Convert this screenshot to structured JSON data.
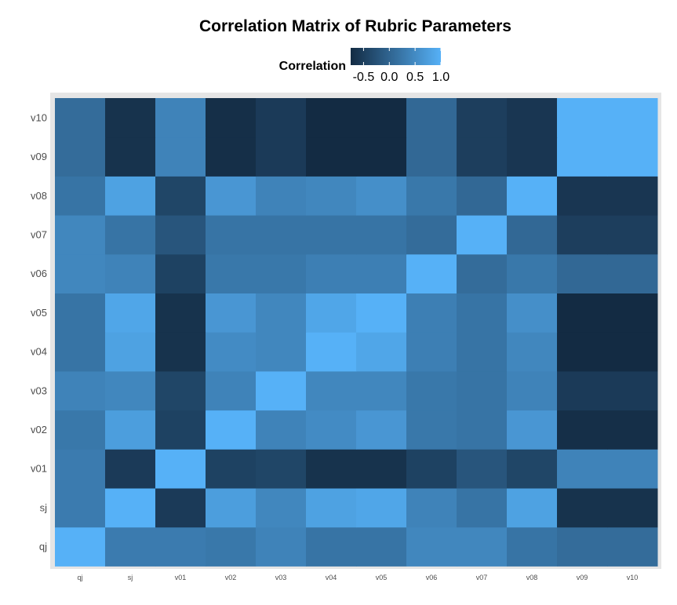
{
  "chart_data": {
    "type": "heatmap",
    "title": "Correlation Matrix of Rubric Parameters",
    "legend": {
      "title": "Correlation",
      "placement": "top",
      "ticks": [
        "-0.5",
        "0.0",
        "0.5",
        "1.0"
      ],
      "tick_values": [
        -0.5,
        0.0,
        0.5,
        1.0
      ],
      "range": [
        -0.75,
        1.0
      ]
    },
    "color_scale": {
      "low": "#132B43",
      "high": "#56B1F7"
    },
    "x_categories": [
      "qj",
      "sj",
      "v01",
      "v02",
      "v03",
      "v04",
      "v05",
      "v06",
      "v07",
      "v08",
      "v09",
      "v10"
    ],
    "y_categories": [
      "qj",
      "sj",
      "v01",
      "v02",
      "v03",
      "v04",
      "v05",
      "v06",
      "v07",
      "v08",
      "v09",
      "v10"
    ],
    "matrix": [
      [
        1.0,
        0.3,
        0.3,
        0.25,
        0.4,
        0.2,
        0.2,
        0.45,
        0.45,
        0.2,
        0.1,
        0.1
      ],
      [
        0.3,
        1.0,
        -0.55,
        0.75,
        0.45,
        0.8,
        0.85,
        0.4,
        0.2,
        0.8,
        -0.65,
        -0.65
      ],
      [
        0.3,
        -0.55,
        1.0,
        -0.45,
        -0.4,
        -0.65,
        -0.65,
        -0.45,
        -0.2,
        -0.4,
        0.4,
        0.4
      ],
      [
        0.25,
        0.75,
        -0.45,
        1.0,
        0.4,
        0.5,
        0.65,
        0.25,
        0.2,
        0.65,
        -0.7,
        -0.7
      ],
      [
        0.4,
        0.45,
        -0.4,
        0.4,
        1.0,
        0.45,
        0.45,
        0.25,
        0.2,
        0.4,
        -0.55,
        -0.55
      ],
      [
        0.2,
        0.8,
        -0.65,
        0.5,
        0.45,
        1.0,
        0.85,
        0.35,
        0.2,
        0.45,
        -0.75,
        -0.75
      ],
      [
        0.2,
        0.85,
        -0.65,
        0.65,
        0.45,
        0.85,
        1.0,
        0.35,
        0.2,
        0.55,
        -0.75,
        -0.75
      ],
      [
        0.45,
        0.4,
        -0.45,
        0.25,
        0.25,
        0.35,
        0.35,
        1.0,
        0.1,
        0.25,
        0.05,
        0.05
      ],
      [
        0.45,
        0.2,
        -0.2,
        0.2,
        0.2,
        0.2,
        0.2,
        0.1,
        1.0,
        0.05,
        -0.5,
        -0.5
      ],
      [
        0.2,
        0.8,
        -0.4,
        0.65,
        0.4,
        0.45,
        0.55,
        0.25,
        0.05,
        1.0,
        -0.6,
        -0.6
      ],
      [
        0.1,
        -0.65,
        0.4,
        -0.7,
        -0.55,
        -0.75,
        -0.75,
        0.05,
        -0.5,
        -0.6,
        1.0,
        1.0
      ],
      [
        0.1,
        -0.65,
        0.4,
        -0.7,
        -0.55,
        -0.75,
        -0.75,
        0.05,
        -0.5,
        -0.6,
        1.0,
        1.0
      ]
    ],
    "grid": false
  }
}
